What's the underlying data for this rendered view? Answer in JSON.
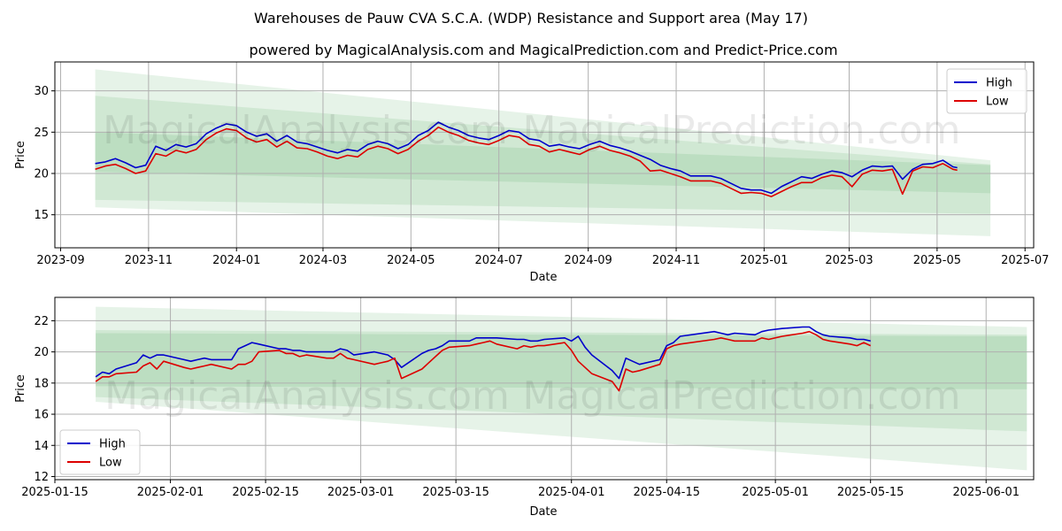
{
  "figure": {
    "title": "Warehouses de Pauw CVA S.C.A. (WDP) Resistance and Support area (May 17)",
    "subtitle": "powered by MagicalAnalysis.com and MagicalPrediction.com and Predict-Price.com",
    "watermarks": [
      "MagicalAnalysis.com",
      "MagicalPrediction.com"
    ]
  },
  "colors": {
    "high": "#0000cc",
    "low": "#dd0000",
    "band": "#2e9e3e",
    "grid": "#b0b0b0"
  },
  "chart_data": [
    {
      "type": "line",
      "xlabel": "Date",
      "ylabel": "Price",
      "xlim": [
        "2023-08-28",
        "2025-07-07"
      ],
      "ylim": [
        11.0,
        33.5
      ],
      "xticks": [
        "2023-09",
        "2023-11",
        "2024-01",
        "2024-03",
        "2024-05",
        "2024-07",
        "2024-09",
        "2024-11",
        "2025-01",
        "2025-03",
        "2025-05",
        "2025-07"
      ],
      "yticks": [
        15,
        20,
        25,
        30
      ],
      "legend": {
        "position": "top-right",
        "entries": [
          "High",
          "Low"
        ]
      },
      "grid": true,
      "bands": [
        {
          "x": [
            "2023-09-25",
            "2025-06-07"
          ],
          "upper": [
            32.6,
            21.6
          ],
          "lower": [
            15.9,
            12.4
          ],
          "alpha": 0.12
        },
        {
          "x": [
            "2023-09-25",
            "2025-06-07"
          ],
          "upper": [
            29.4,
            21.1
          ],
          "lower": [
            20.2,
            17.6
          ],
          "alpha": 0.12
        },
        {
          "x": [
            "2023-09-25",
            "2025-06-07"
          ],
          "upper": [
            25.0,
            21.0
          ],
          "lower": [
            16.8,
            15.1
          ],
          "alpha": 0.12
        }
      ],
      "series": [
        {
          "name": "High",
          "x": [
            "2023-09-25",
            "2023-10-02",
            "2023-10-09",
            "2023-10-16",
            "2023-10-23",
            "2023-10-30",
            "2023-11-06",
            "2023-11-13",
            "2023-11-20",
            "2023-11-27",
            "2023-12-04",
            "2023-12-11",
            "2023-12-18",
            "2023-12-25",
            "2024-01-01",
            "2024-01-08",
            "2024-01-15",
            "2024-01-22",
            "2024-01-29",
            "2024-02-05",
            "2024-02-12",
            "2024-02-19",
            "2024-02-26",
            "2024-03-04",
            "2024-03-11",
            "2024-03-18",
            "2024-03-25",
            "2024-04-01",
            "2024-04-08",
            "2024-04-15",
            "2024-04-22",
            "2024-04-29",
            "2024-05-06",
            "2024-05-13",
            "2024-05-20",
            "2024-05-27",
            "2024-06-03",
            "2024-06-10",
            "2024-06-17",
            "2024-06-24",
            "2024-07-01",
            "2024-07-08",
            "2024-07-15",
            "2024-07-22",
            "2024-07-29",
            "2024-08-05",
            "2024-08-12",
            "2024-08-19",
            "2024-08-26",
            "2024-09-02",
            "2024-09-09",
            "2024-09-16",
            "2024-09-23",
            "2024-09-30",
            "2024-10-07",
            "2024-10-14",
            "2024-10-21",
            "2024-10-28",
            "2024-11-04",
            "2024-11-11",
            "2024-11-18",
            "2024-11-25",
            "2024-12-02",
            "2024-12-09",
            "2024-12-16",
            "2024-12-23",
            "2024-12-30",
            "2025-01-06",
            "2025-01-13",
            "2025-01-20",
            "2025-01-27",
            "2025-02-03",
            "2025-02-10",
            "2025-02-17",
            "2025-02-24",
            "2025-03-03",
            "2025-03-10",
            "2025-03-17",
            "2025-03-24",
            "2025-03-31",
            "2025-04-07",
            "2025-04-14",
            "2025-04-21",
            "2025-04-28",
            "2025-05-05",
            "2025-05-12",
            "2025-05-15"
          ],
          "values": [
            21.2,
            21.4,
            21.8,
            21.3,
            20.7,
            21.0,
            23.3,
            22.8,
            23.5,
            23.2,
            23.6,
            24.8,
            25.5,
            26.0,
            25.8,
            25.0,
            24.5,
            24.8,
            23.9,
            24.6,
            23.8,
            23.6,
            23.2,
            22.8,
            22.5,
            22.9,
            22.7,
            23.5,
            23.9,
            23.6,
            23.0,
            23.5,
            24.6,
            25.2,
            26.2,
            25.6,
            25.2,
            24.6,
            24.3,
            24.1,
            24.6,
            25.2,
            25.0,
            24.2,
            24.0,
            23.3,
            23.5,
            23.2,
            23.0,
            23.5,
            23.9,
            23.4,
            23.1,
            22.7,
            22.2,
            21.7,
            21.0,
            20.6,
            20.3,
            19.7,
            19.7,
            19.7,
            19.4,
            18.8,
            18.2,
            18.0,
            18.0,
            17.6,
            18.4,
            19.0,
            19.6,
            19.4,
            19.9,
            20.3,
            20.1,
            19.6,
            20.4,
            20.9,
            20.8,
            20.9,
            19.3,
            20.5,
            21.1,
            21.2,
            21.6,
            20.8,
            20.7
          ]
        },
        {
          "name": "Low",
          "x": [
            "2023-09-25",
            "2023-10-02",
            "2023-10-09",
            "2023-10-16",
            "2023-10-23",
            "2023-10-30",
            "2023-11-06",
            "2023-11-13",
            "2023-11-20",
            "2023-11-27",
            "2023-12-04",
            "2023-12-11",
            "2023-12-18",
            "2023-12-25",
            "2024-01-01",
            "2024-01-08",
            "2024-01-15",
            "2024-01-22",
            "2024-01-29",
            "2024-02-05",
            "2024-02-12",
            "2024-02-19",
            "2024-02-26",
            "2024-03-04",
            "2024-03-11",
            "2024-03-18",
            "2024-03-25",
            "2024-04-01",
            "2024-04-08",
            "2024-04-15",
            "2024-04-22",
            "2024-04-29",
            "2024-05-06",
            "2024-05-13",
            "2024-05-20",
            "2024-05-27",
            "2024-06-03",
            "2024-06-10",
            "2024-06-17",
            "2024-06-24",
            "2024-07-01",
            "2024-07-08",
            "2024-07-15",
            "2024-07-22",
            "2024-07-29",
            "2024-08-05",
            "2024-08-12",
            "2024-08-19",
            "2024-08-26",
            "2024-09-02",
            "2024-09-09",
            "2024-09-16",
            "2024-09-23",
            "2024-09-30",
            "2024-10-07",
            "2024-10-14",
            "2024-10-21",
            "2024-10-28",
            "2024-11-04",
            "2024-11-11",
            "2024-11-18",
            "2024-11-25",
            "2024-12-02",
            "2024-12-09",
            "2024-12-16",
            "2024-12-23",
            "2024-12-30",
            "2025-01-06",
            "2025-01-13",
            "2025-01-20",
            "2025-01-27",
            "2025-02-03",
            "2025-02-10",
            "2025-02-17",
            "2025-02-24",
            "2025-03-03",
            "2025-03-10",
            "2025-03-17",
            "2025-03-24",
            "2025-03-31",
            "2025-04-07",
            "2025-04-14",
            "2025-04-21",
            "2025-04-28",
            "2025-05-05",
            "2025-05-12",
            "2025-05-15"
          ],
          "values": [
            20.5,
            20.9,
            21.1,
            20.6,
            20.0,
            20.3,
            22.4,
            22.1,
            22.8,
            22.5,
            22.9,
            24.1,
            24.9,
            25.4,
            25.2,
            24.3,
            23.8,
            24.1,
            23.2,
            23.9,
            23.1,
            23.0,
            22.6,
            22.1,
            21.8,
            22.2,
            22.0,
            22.9,
            23.3,
            23.0,
            22.4,
            22.9,
            23.9,
            24.6,
            25.6,
            25.0,
            24.6,
            24.0,
            23.7,
            23.5,
            24.0,
            24.6,
            24.4,
            23.5,
            23.3,
            22.6,
            22.9,
            22.6,
            22.3,
            22.9,
            23.3,
            22.8,
            22.5,
            22.1,
            21.5,
            20.3,
            20.4,
            20.0,
            19.6,
            19.1,
            19.1,
            19.1,
            18.8,
            18.2,
            17.6,
            17.7,
            17.6,
            17.2,
            17.8,
            18.4,
            18.9,
            18.9,
            19.5,
            19.8,
            19.6,
            18.4,
            19.9,
            20.4,
            20.3,
            20.5,
            17.5,
            20.3,
            20.8,
            20.7,
            21.2,
            20.5,
            20.4
          ]
        }
      ]
    },
    {
      "type": "line",
      "xlabel": "Date",
      "ylabel": "Price",
      "xlim": [
        "2025-01-15",
        "2025-06-08"
      ],
      "ylim": [
        11.8,
        23.5
      ],
      "xticks": [
        "2025-01-15",
        "2025-02-01",
        "2025-02-15",
        "2025-03-01",
        "2025-03-15",
        "2025-04-01",
        "2025-04-15",
        "2025-05-01",
        "2025-05-15",
        "2025-06-01"
      ],
      "yticks": [
        12,
        14,
        16,
        18,
        20,
        22
      ],
      "legend": {
        "position": "bottom-left",
        "entries": [
          "High",
          "Low"
        ]
      },
      "grid": true,
      "bands": [
        {
          "x": [
            "2025-01-21",
            "2025-06-07"
          ],
          "upper": [
            22.9,
            21.6
          ],
          "lower": [
            16.8,
            12.4
          ],
          "alpha": 0.12
        },
        {
          "x": [
            "2025-01-21",
            "2025-06-07"
          ],
          "upper": [
            21.4,
            21.1
          ],
          "lower": [
            17.8,
            17.6
          ],
          "alpha": 0.12
        },
        {
          "x": [
            "2025-01-21",
            "2025-06-07"
          ],
          "upper": [
            21.2,
            21.0
          ],
          "lower": [
            17.1,
            14.9
          ],
          "alpha": 0.12
        }
      ],
      "series": [
        {
          "name": "High",
          "x": [
            "2025-01-21",
            "2025-01-22",
            "2025-01-23",
            "2025-01-24",
            "2025-01-27",
            "2025-01-28",
            "2025-01-29",
            "2025-01-30",
            "2025-01-31",
            "2025-02-03",
            "2025-02-04",
            "2025-02-05",
            "2025-02-06",
            "2025-02-07",
            "2025-02-10",
            "2025-02-11",
            "2025-02-12",
            "2025-02-13",
            "2025-02-14",
            "2025-02-17",
            "2025-02-18",
            "2025-02-19",
            "2025-02-20",
            "2025-02-21",
            "2025-02-24",
            "2025-02-25",
            "2025-02-26",
            "2025-02-27",
            "2025-02-28",
            "2025-03-03",
            "2025-03-04",
            "2025-03-05",
            "2025-03-06",
            "2025-03-07",
            "2025-03-10",
            "2025-03-11",
            "2025-03-12",
            "2025-03-13",
            "2025-03-14",
            "2025-03-17",
            "2025-03-18",
            "2025-03-19",
            "2025-03-20",
            "2025-03-21",
            "2025-03-24",
            "2025-03-25",
            "2025-03-26",
            "2025-03-27",
            "2025-03-28",
            "2025-03-31",
            "2025-04-01",
            "2025-04-02",
            "2025-04-03",
            "2025-04-04",
            "2025-04-07",
            "2025-04-08",
            "2025-04-09",
            "2025-04-10",
            "2025-04-11",
            "2025-04-14",
            "2025-04-15",
            "2025-04-16",
            "2025-04-17",
            "2025-04-22",
            "2025-04-23",
            "2025-04-24",
            "2025-04-25",
            "2025-04-28",
            "2025-04-29",
            "2025-04-30",
            "2025-05-02",
            "2025-05-05",
            "2025-05-06",
            "2025-05-07",
            "2025-05-08",
            "2025-05-09",
            "2025-05-12",
            "2025-05-13",
            "2025-05-14",
            "2025-05-15"
          ],
          "values": [
            18.4,
            18.7,
            18.6,
            18.9,
            19.3,
            19.8,
            19.6,
            19.8,
            19.8,
            19.5,
            19.4,
            19.5,
            19.6,
            19.5,
            19.5,
            20.2,
            20.4,
            20.6,
            20.5,
            20.2,
            20.2,
            20.1,
            20.1,
            20.0,
            20.0,
            20.0,
            20.2,
            20.1,
            19.8,
            20.0,
            19.9,
            19.8,
            19.5,
            19.0,
            19.9,
            20.1,
            20.2,
            20.4,
            20.7,
            20.7,
            20.9,
            20.9,
            20.9,
            20.9,
            20.8,
            20.8,
            20.7,
            20.7,
            20.8,
            20.9,
            20.7,
            21.0,
            20.3,
            19.8,
            18.8,
            18.3,
            19.6,
            19.4,
            19.2,
            19.5,
            20.4,
            20.6,
            21.0,
            21.3,
            21.2,
            21.1,
            21.2,
            21.1,
            21.3,
            21.4,
            21.5,
            21.6,
            21.6,
            21.3,
            21.1,
            21.0,
            20.9,
            20.8,
            20.8,
            20.7
          ]
        },
        {
          "name": "Low",
          "x": [
            "2025-01-21",
            "2025-01-22",
            "2025-01-23",
            "2025-01-24",
            "2025-01-27",
            "2025-01-28",
            "2025-01-29",
            "2025-01-30",
            "2025-01-31",
            "2025-02-03",
            "2025-02-04",
            "2025-02-05",
            "2025-02-06",
            "2025-02-07",
            "2025-02-10",
            "2025-02-11",
            "2025-02-12",
            "2025-02-13",
            "2025-02-14",
            "2025-02-17",
            "2025-02-18",
            "2025-02-19",
            "2025-02-20",
            "2025-02-21",
            "2025-02-24",
            "2025-02-25",
            "2025-02-26",
            "2025-02-27",
            "2025-02-28",
            "2025-03-03",
            "2025-03-04",
            "2025-03-05",
            "2025-03-06",
            "2025-03-07",
            "2025-03-10",
            "2025-03-11",
            "2025-03-12",
            "2025-03-13",
            "2025-03-14",
            "2025-03-17",
            "2025-03-18",
            "2025-03-19",
            "2025-03-20",
            "2025-03-21",
            "2025-03-24",
            "2025-03-25",
            "2025-03-26",
            "2025-03-27",
            "2025-03-28",
            "2025-03-31",
            "2025-04-01",
            "2025-04-02",
            "2025-04-03",
            "2025-04-04",
            "2025-04-07",
            "2025-04-08",
            "2025-04-09",
            "2025-04-10",
            "2025-04-11",
            "2025-04-14",
            "2025-04-15",
            "2025-04-16",
            "2025-04-17",
            "2025-04-22",
            "2025-04-23",
            "2025-04-24",
            "2025-04-25",
            "2025-04-28",
            "2025-04-29",
            "2025-04-30",
            "2025-05-02",
            "2025-05-05",
            "2025-05-06",
            "2025-05-07",
            "2025-05-08",
            "2025-05-09",
            "2025-05-12",
            "2025-05-13",
            "2025-05-14",
            "2025-05-15"
          ],
          "values": [
            18.1,
            18.4,
            18.4,
            18.6,
            18.7,
            19.1,
            19.3,
            18.9,
            19.4,
            19.0,
            18.9,
            19.0,
            19.1,
            19.2,
            18.9,
            19.2,
            19.2,
            19.4,
            20.0,
            20.1,
            19.9,
            19.9,
            19.7,
            19.8,
            19.6,
            19.6,
            19.9,
            19.6,
            19.5,
            19.2,
            19.3,
            19.4,
            19.6,
            18.3,
            18.9,
            19.3,
            19.7,
            20.1,
            20.3,
            20.4,
            20.5,
            20.6,
            20.7,
            20.5,
            20.2,
            20.4,
            20.3,
            20.4,
            20.4,
            20.6,
            20.1,
            19.4,
            19.0,
            18.6,
            18.1,
            17.5,
            18.9,
            18.7,
            18.8,
            19.2,
            20.2,
            20.4,
            20.5,
            20.8,
            20.9,
            20.8,
            20.7,
            20.7,
            20.9,
            20.8,
            21.0,
            21.2,
            21.3,
            21.1,
            20.8,
            20.7,
            20.5,
            20.4,
            20.6,
            20.4
          ]
        }
      ]
    }
  ]
}
